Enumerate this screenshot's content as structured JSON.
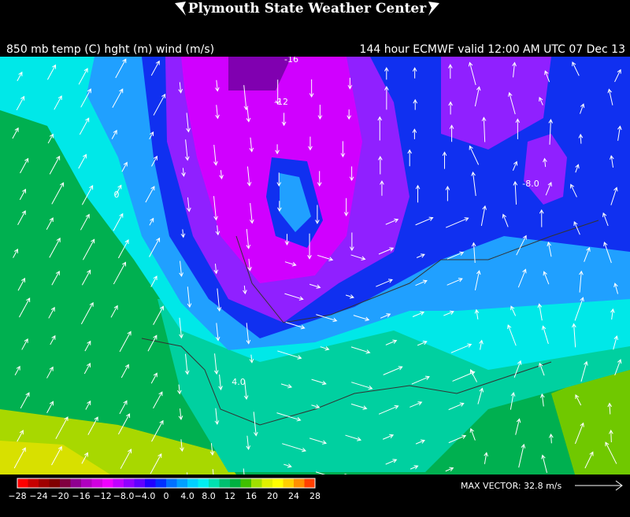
{
  "header": {
    "title": "Plymouth State Weather Center"
  },
  "map": {
    "field_label": "850 mb temp (C) hght (m) wind (m/s)",
    "run_label": "144 hour ECMWF valid 12:00 AM UTC 07 Dec 13",
    "contour_labels": [
      "-16",
      "-12",
      "0",
      "-8.0",
      "4.0"
    ]
  },
  "colorbar": {
    "labels": [
      "−28",
      "−24",
      "−20",
      "−16",
      "−12",
      "−8.0",
      "−4.0",
      "0",
      "4.0",
      "8.0",
      "12",
      "16",
      "20",
      "24",
      "28"
    ],
    "colors": [
      "#ff0000",
      "#c80000",
      "#a00000",
      "#800000",
      "#800040",
      "#900090",
      "#b000c0",
      "#d000e0",
      "#f000ff",
      "#c000ff",
      "#9000ff",
      "#6000ff",
      "#2000ff",
      "#0030ff",
      "#0070ff",
      "#00a0ff",
      "#00d0ff",
      "#00f0f0",
      "#00e0b0",
      "#00c070",
      "#00b040",
      "#40c000",
      "#a0e000",
      "#e0f000",
      "#ffff00",
      "#ffd000",
      "#ff9000",
      "#ff4000"
    ]
  },
  "footer": {
    "max_vector": "MAX VECTOR:  32.8 m/s"
  }
}
